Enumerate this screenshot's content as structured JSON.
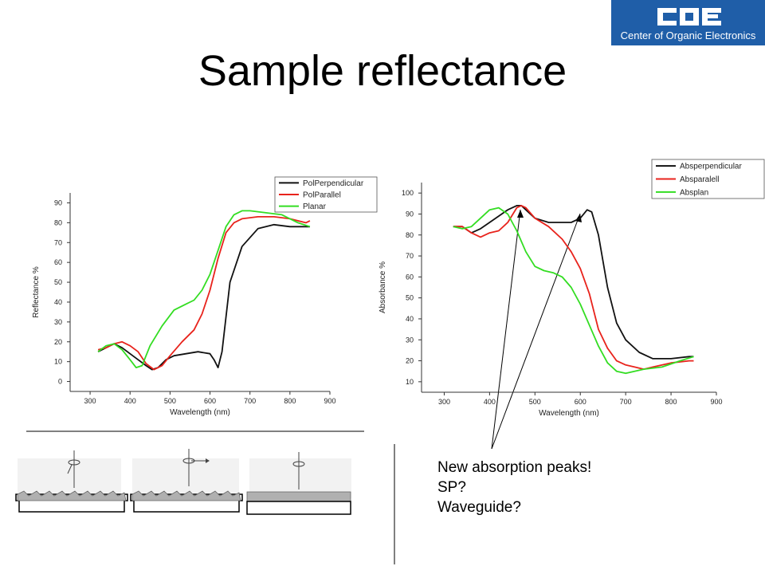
{
  "slide": {
    "title": "Sample reflectance",
    "logo_text": "Center of Organic Electronics",
    "logo_mark": "COE",
    "notes": [
      "New absorption peaks!",
      "SP?",
      "Waveguide?"
    ]
  },
  "colors": {
    "black": "#111111",
    "red": "#e8231c",
    "green": "#33dd22",
    "logo_bg": "#1f5ea8"
  },
  "chart_data": [
    {
      "type": "line",
      "xlabel": "Wavelength (nm)",
      "ylabel": "Reflectance %",
      "xlim": [
        250,
        900
      ],
      "ylim": [
        -5,
        95
      ],
      "xticks": [
        300,
        400,
        500,
        600,
        700,
        800,
        900
      ],
      "yticks": [
        0,
        10,
        20,
        30,
        40,
        50,
        60,
        70,
        80,
        90
      ],
      "legend_position": "top-right",
      "series": [
        {
          "name": "PolPerpendicular",
          "color": "#111111",
          "x": [
            320,
            340,
            360,
            380,
            400,
            420,
            440,
            455,
            470,
            490,
            510,
            540,
            570,
            600,
            610,
            620,
            630,
            650,
            680,
            720,
            760,
            800,
            840,
            850
          ],
          "y": [
            15,
            17,
            19,
            17,
            14,
            11,
            8,
            6,
            7,
            11,
            13,
            14,
            15,
            14,
            11,
            7,
            15,
            50,
            68,
            77,
            79,
            78,
            78,
            78
          ]
        },
        {
          "name": "PolParallel",
          "color": "#e8231c",
          "x": [
            320,
            340,
            360,
            380,
            400,
            420,
            440,
            460,
            480,
            500,
            530,
            560,
            580,
            600,
            620,
            640,
            660,
            680,
            720,
            760,
            800,
            840,
            850
          ],
          "y": [
            16,
            17,
            19,
            20,
            18,
            15,
            9,
            6,
            8,
            13,
            20,
            26,
            34,
            46,
            62,
            75,
            80,
            82,
            83,
            83,
            82,
            80,
            81
          ]
        },
        {
          "name": "Planar",
          "color": "#33dd22",
          "x": [
            320,
            340,
            360,
            380,
            400,
            415,
            430,
            450,
            480,
            510,
            540,
            560,
            580,
            600,
            620,
            640,
            660,
            680,
            700,
            740,
            780,
            820,
            850
          ],
          "y": [
            15,
            18,
            19,
            16,
            11,
            7,
            8,
            18,
            28,
            36,
            39,
            41,
            46,
            54,
            66,
            78,
            84,
            86,
            86,
            85,
            84,
            80,
            78
          ]
        }
      ]
    },
    {
      "type": "line",
      "xlabel": "Wavelength (nm)",
      "ylabel": "Absorbance %",
      "xlim": [
        250,
        900
      ],
      "ylim": [
        5,
        105
      ],
      "xticks": [
        300,
        400,
        500,
        600,
        700,
        800,
        900
      ],
      "yticks": [
        10,
        20,
        30,
        40,
        50,
        60,
        70,
        80,
        90,
        100
      ],
      "legend_position": "top-right",
      "series": [
        {
          "name": "Absperpendicular",
          "color": "#111111",
          "x": [
            320,
            340,
            360,
            380,
            400,
            420,
            440,
            460,
            470,
            480,
            500,
            530,
            560,
            580,
            600,
            615,
            625,
            640,
            660,
            680,
            700,
            730,
            760,
            800,
            840,
            850
          ],
          "y": [
            84,
            84,
            81,
            83,
            86,
            89,
            92,
            94,
            94,
            92,
            88,
            86,
            86,
            86,
            88,
            92,
            91,
            80,
            55,
            38,
            30,
            24,
            21,
            21,
            22,
            22
          ]
        },
        {
          "name": "Absparalell",
          "color": "#e8231c",
          "x": [
            320,
            340,
            360,
            380,
            400,
            420,
            440,
            460,
            470,
            480,
            500,
            530,
            560,
            580,
            600,
            620,
            640,
            660,
            680,
            700,
            720,
            740,
            760,
            800,
            840,
            850
          ],
          "y": [
            84,
            84,
            81,
            79,
            81,
            82,
            86,
            93,
            94,
            93,
            88,
            84,
            78,
            72,
            64,
            52,
            35,
            26,
            20,
            18,
            17,
            16,
            17,
            19,
            20,
            20
          ]
        },
        {
          "name": "Absplan",
          "color": "#33dd22",
          "x": [
            320,
            340,
            360,
            380,
            400,
            420,
            440,
            460,
            480,
            500,
            520,
            540,
            560,
            580,
            600,
            620,
            640,
            660,
            680,
            700,
            740,
            780,
            820,
            850
          ],
          "y": [
            84,
            83,
            84,
            88,
            92,
            93,
            90,
            82,
            72,
            65,
            63,
            62,
            60,
            55,
            47,
            37,
            27,
            19,
            15,
            14,
            16,
            17,
            20,
            22
          ]
        }
      ]
    }
  ]
}
